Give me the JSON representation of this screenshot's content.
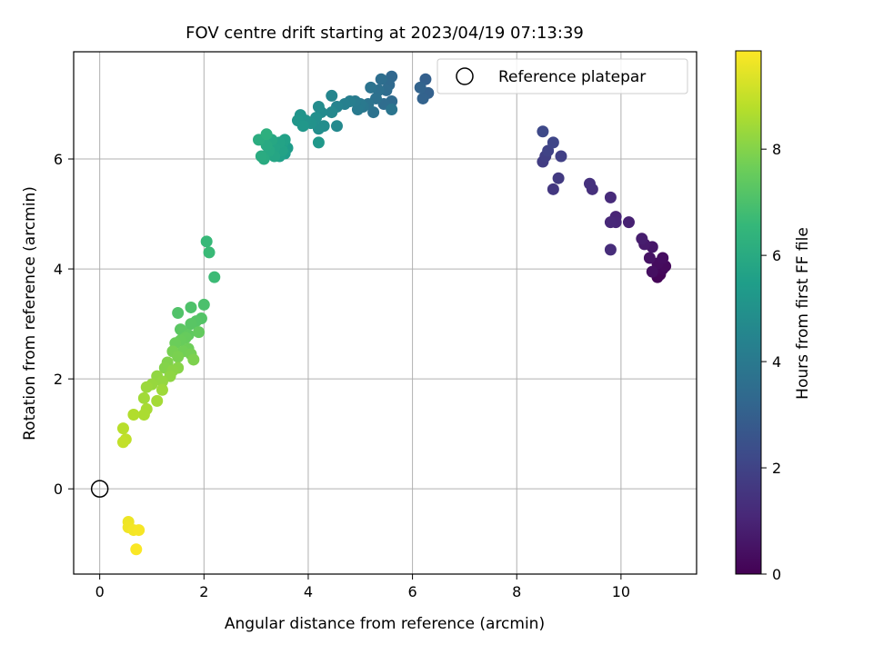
{
  "chart_data": {
    "type": "scatter",
    "title": "FOV centre drift starting at 2023/04/19 07:13:39",
    "xlabel": "Angular distance from reference (arcmin)",
    "ylabel": "Rotation from reference (arcmin)",
    "xlim": [
      -0.5,
      11.45
    ],
    "ylim": [
      -1.55,
      7.95
    ],
    "xticks": [
      0,
      2,
      4,
      6,
      8,
      10
    ],
    "yticks": [
      0,
      2,
      4,
      6
    ],
    "grid": true,
    "legend": {
      "position": "top-right",
      "entries": [
        "Reference platepar"
      ]
    },
    "reference_point": {
      "name": "Reference platepar",
      "x": 0,
      "y": 0
    },
    "colorbar": {
      "label": "Hours from first FF file",
      "range": [
        0,
        9.85
      ],
      "ticks": [
        0,
        2,
        4,
        6,
        8
      ],
      "colormap": [
        "#440154",
        "#482878",
        "#3e4989",
        "#31688e",
        "#26828e",
        "#1f9e89",
        "#35b779",
        "#6ece58",
        "#b5de2b",
        "#fde725"
      ]
    },
    "points": [
      [
        10.7,
        3.85,
        0.05
      ],
      [
        10.75,
        3.9,
        0.1
      ],
      [
        10.65,
        3.95,
        0.15
      ],
      [
        10.8,
        4.0,
        0.2
      ],
      [
        10.85,
        4.05,
        0.25
      ],
      [
        10.7,
        4.1,
        0.3
      ],
      [
        10.8,
        4.2,
        0.35
      ],
      [
        10.6,
        3.95,
        0.4
      ],
      [
        10.55,
        4.2,
        0.5
      ],
      [
        10.6,
        4.4,
        0.6
      ],
      [
        10.45,
        4.45,
        0.7
      ],
      [
        10.4,
        4.55,
        0.8
      ],
      [
        10.15,
        4.85,
        0.9
      ],
      [
        9.9,
        4.95,
        1.0
      ],
      [
        9.9,
        4.85,
        1.05
      ],
      [
        9.8,
        4.85,
        1.1
      ],
      [
        9.8,
        5.3,
        1.2
      ],
      [
        9.8,
        4.35,
        1.25
      ],
      [
        9.45,
        5.45,
        1.35
      ],
      [
        9.4,
        5.55,
        1.4
      ],
      [
        8.7,
        5.45,
        1.6
      ],
      [
        8.8,
        5.65,
        1.7
      ],
      [
        8.5,
        5.95,
        1.8
      ],
      [
        8.55,
        6.05,
        1.85
      ],
      [
        8.85,
        6.05,
        1.9
      ],
      [
        8.6,
        6.15,
        2.0
      ],
      [
        8.7,
        6.3,
        2.1
      ],
      [
        8.5,
        6.5,
        2.2
      ],
      [
        6.25,
        7.45,
        3.0
      ],
      [
        6.3,
        7.2,
        3.05
      ],
      [
        6.2,
        7.1,
        3.1
      ],
      [
        6.15,
        7.3,
        3.15
      ],
      [
        5.6,
        7.5,
        3.3
      ],
      [
        5.55,
        7.35,
        3.35
      ],
      [
        5.6,
        7.05,
        3.4
      ],
      [
        5.5,
        7.25,
        3.45
      ],
      [
        5.45,
        7.0,
        3.5
      ],
      [
        5.4,
        7.45,
        3.55
      ],
      [
        5.35,
        7.25,
        3.6
      ],
      [
        5.3,
        7.1,
        3.65
      ],
      [
        5.25,
        6.85,
        3.7
      ],
      [
        5.2,
        7.3,
        3.75
      ],
      [
        5.15,
        7.0,
        3.8
      ],
      [
        5.6,
        6.9,
        3.85
      ],
      [
        5.05,
        6.95,
        3.9
      ],
      [
        5.0,
        7.0,
        4.0
      ],
      [
        4.95,
        6.9,
        4.05
      ],
      [
        4.9,
        7.05,
        4.1
      ],
      [
        4.8,
        7.05,
        4.2
      ],
      [
        4.7,
        7.0,
        4.3
      ],
      [
        4.55,
        6.95,
        4.4
      ],
      [
        4.45,
        7.15,
        4.5
      ],
      [
        4.45,
        6.85,
        4.6
      ],
      [
        4.55,
        6.6,
        4.65
      ],
      [
        4.25,
        6.85,
        4.7
      ],
      [
        4.2,
        6.95,
        4.75
      ],
      [
        4.3,
        6.6,
        4.8
      ],
      [
        4.2,
        6.55,
        4.85
      ],
      [
        4.15,
        6.75,
        4.9
      ],
      [
        4.05,
        6.65,
        5.0
      ],
      [
        3.95,
        6.7,
        5.05
      ],
      [
        3.85,
        6.8,
        5.1
      ],
      [
        3.8,
        6.7,
        5.15
      ],
      [
        3.9,
        6.6,
        5.2
      ],
      [
        4.2,
        6.3,
        5.25
      ],
      [
        3.6,
        6.2,
        5.4
      ],
      [
        3.55,
        6.1,
        5.45
      ],
      [
        3.5,
        6.25,
        5.5
      ],
      [
        3.45,
        6.05,
        5.55
      ],
      [
        3.55,
        6.35,
        5.6
      ],
      [
        3.5,
        6.15,
        5.65
      ],
      [
        3.45,
        6.3,
        5.7
      ],
      [
        3.35,
        6.2,
        5.75
      ],
      [
        3.35,
        6.05,
        5.8
      ],
      [
        3.3,
        6.35,
        5.85
      ],
      [
        3.25,
        6.15,
        5.9
      ],
      [
        3.2,
        6.25,
        5.95
      ],
      [
        3.15,
        6.0,
        6.0
      ],
      [
        3.1,
        6.05,
        6.05
      ],
      [
        3.05,
        6.35,
        6.1
      ],
      [
        3.2,
        6.45,
        6.2
      ],
      [
        2.05,
        4.5,
        6.6
      ],
      [
        2.1,
        4.3,
        6.65
      ],
      [
        2.2,
        3.85,
        6.7
      ],
      [
        2.0,
        3.35,
        7.0
      ],
      [
        1.75,
        3.3,
        7.05
      ],
      [
        1.5,
        3.2,
        7.1
      ],
      [
        1.95,
        3.1,
        7.15
      ],
      [
        1.85,
        3.05,
        7.2
      ],
      [
        1.75,
        3.0,
        7.25
      ],
      [
        1.55,
        2.9,
        7.3
      ],
      [
        1.6,
        2.85,
        7.35
      ],
      [
        1.7,
        2.8,
        7.4
      ],
      [
        1.9,
        2.85,
        7.45
      ],
      [
        1.65,
        2.75,
        7.5
      ],
      [
        1.55,
        2.7,
        7.55
      ],
      [
        1.45,
        2.65,
        7.6
      ],
      [
        1.7,
        2.55,
        7.65
      ],
      [
        1.6,
        2.5,
        7.7
      ],
      [
        1.75,
        2.45,
        7.75
      ],
      [
        1.4,
        2.5,
        7.8
      ],
      [
        1.5,
        2.4,
        7.85
      ],
      [
        1.8,
        2.35,
        7.9
      ],
      [
        1.3,
        2.3,
        7.95
      ],
      [
        1.25,
        2.2,
        8.0
      ],
      [
        1.5,
        2.2,
        8.05
      ],
      [
        1.4,
        2.15,
        8.1
      ],
      [
        1.35,
        2.05,
        8.15
      ],
      [
        1.1,
        2.05,
        8.2
      ],
      [
        1.2,
        1.95,
        8.25
      ],
      [
        1.0,
        1.9,
        8.3
      ],
      [
        0.9,
        1.85,
        8.35
      ],
      [
        1.2,
        1.8,
        8.4
      ],
      [
        0.85,
        1.65,
        8.45
      ],
      [
        1.1,
        1.6,
        8.5
      ],
      [
        0.9,
        1.45,
        8.55
      ],
      [
        0.85,
        1.35,
        8.6
      ],
      [
        0.65,
        1.35,
        8.7
      ],
      [
        0.45,
        1.1,
        8.8
      ],
      [
        0.5,
        0.9,
        8.9
      ],
      [
        0.45,
        0.85,
        8.95
      ],
      [
        0.55,
        -0.6,
        9.6
      ],
      [
        0.55,
        -0.7,
        9.65
      ],
      [
        0.65,
        -0.75,
        9.7
      ],
      [
        0.75,
        -0.75,
        9.75
      ],
      [
        0.7,
        -1.1,
        9.8
      ]
    ]
  }
}
